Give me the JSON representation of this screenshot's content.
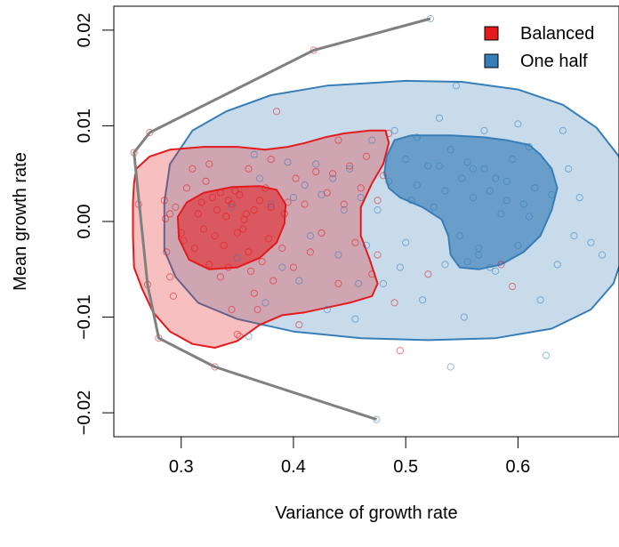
{
  "chart_data": {
    "type": "scatter",
    "title": "",
    "xlabel": "Variance of growth rate",
    "ylabel": "Mean growth rate",
    "xlim": [
      0.24,
      0.69
    ],
    "ylim": [
      -0.0225,
      0.0225
    ],
    "x_ticks": [
      {
        "value": 0.3,
        "label": "0.3"
      },
      {
        "value": 0.4,
        "label": "0.4"
      },
      {
        "value": 0.5,
        "label": "0.5"
      },
      {
        "value": 0.6,
        "label": "0.6"
      }
    ],
    "y_ticks": [
      {
        "value": -0.02,
        "label": "−0.02"
      },
      {
        "value": -0.01,
        "label": "−0.01"
      },
      {
        "value": 0.0,
        "label": "0.00"
      },
      {
        "value": 0.01,
        "label": "0.01"
      },
      {
        "value": 0.02,
        "label": "0.02"
      }
    ],
    "grid": false,
    "legend_position": "top-right",
    "series": [
      {
        "name": "Balanced",
        "color": "#e41a1c",
        "points": [
          [
            0.258,
            0.0072
          ],
          [
            0.262,
            0.0018
          ],
          [
            0.272,
            0.0093
          ],
          [
            0.27,
            -0.0066
          ],
          [
            0.28,
            -0.0122
          ],
          [
            0.285,
            0.0022
          ],
          [
            0.286,
            0.0003
          ],
          [
            0.287,
            -0.0032
          ],
          [
            0.29,
            0.0008
          ],
          [
            0.29,
            -0.0058
          ],
          [
            0.293,
            -0.0078
          ],
          [
            0.295,
            0.0015
          ],
          [
            0.3,
            -0.0012
          ],
          [
            0.302,
            -0.002
          ],
          [
            0.305,
            0.0035
          ],
          [
            0.31,
            0.0055
          ],
          [
            0.312,
            -0.0028
          ],
          [
            0.315,
            0.0008
          ],
          [
            0.318,
            0.002
          ],
          [
            0.32,
            -0.0008
          ],
          [
            0.322,
            0.0042
          ],
          [
            0.325,
            -0.0045
          ],
          [
            0.325,
            0.006
          ],
          [
            0.328,
            0.0025
          ],
          [
            0.33,
            -0.0015
          ],
          [
            0.332,
            0.0012
          ],
          [
            0.335,
            0.003
          ],
          [
            0.335,
            -0.0058
          ],
          [
            0.338,
            -0.0025
          ],
          [
            0.34,
            0.0005
          ],
          [
            0.342,
            -0.0048
          ],
          [
            0.345,
            0.0018
          ],
          [
            0.345,
            -0.0092
          ],
          [
            0.348,
            0.0032
          ],
          [
            0.35,
            -0.0012
          ],
          [
            0.35,
            -0.0118
          ],
          [
            0.352,
            0.0028
          ],
          [
            0.352,
            -0.012
          ],
          [
            0.355,
            -0.0008
          ],
          [
            0.358,
            0.0008
          ],
          [
            0.36,
            -0.0032
          ],
          [
            0.36,
            0.0055
          ],
          [
            0.362,
            -0.0052
          ],
          [
            0.365,
            -0.0075
          ],
          [
            0.365,
            0.0012
          ],
          [
            0.368,
            -0.0092
          ],
          [
            0.37,
            0.0022
          ],
          [
            0.372,
            -0.0042
          ],
          [
            0.375,
            0.0035
          ],
          [
            0.378,
            -0.0018
          ],
          [
            0.38,
            0.0065
          ],
          [
            0.382,
            -0.0062
          ],
          [
            0.385,
            0.0115
          ],
          [
            0.39,
            -0.0028
          ],
          [
            0.392,
            0.0008
          ],
          [
            0.395,
            0.002
          ],
          [
            0.4,
            -0.0048
          ],
          [
            0.402,
            0.0045
          ],
          [
            0.405,
            -0.0108
          ],
          [
            0.41,
            0.0018
          ],
          [
            0.415,
            -0.0032
          ],
          [
            0.42,
            0.0052
          ],
          [
            0.418,
            0.0179
          ],
          [
            0.425,
            -0.0012
          ],
          [
            0.43,
            0.003
          ],
          [
            0.435,
            0.005
          ],
          [
            0.44,
            -0.0065
          ],
          [
            0.445,
            0.0018
          ],
          [
            0.45,
            0.0058
          ],
          [
            0.455,
            -0.0022
          ],
          [
            0.46,
            0.0035
          ],
          [
            0.465,
            0.0068
          ],
          [
            0.47,
            -0.0055
          ],
          [
            0.475,
            0.0022
          ],
          [
            0.48,
            0.0048
          ],
          [
            0.485,
            0.0092
          ],
          [
            0.49,
            -0.0085
          ],
          [
            0.495,
            -0.0135
          ],
          [
            0.475,
            -0.0035
          ],
          [
            0.44,
            0.0085
          ],
          [
            0.33,
            -0.0152
          ],
          [
            0.52,
            -0.0055
          ],
          [
            0.585,
            -0.0045
          ],
          [
            0.595,
            -0.0068
          ],
          [
            0.38,
            0.0015
          ],
          [
            0.342,
            0.0022
          ],
          [
            0.356,
            0.0002
          ]
        ]
      },
      {
        "name": "One half",
        "color": "#377eb8",
        "points": [
          [
            0.522,
            0.0212
          ],
          [
            0.474,
            -0.0207
          ],
          [
            0.36,
            -0.012
          ],
          [
            0.345,
            0.0015
          ],
          [
            0.35,
            -0.0038
          ],
          [
            0.365,
            0.007
          ],
          [
            0.37,
            0.0045
          ],
          [
            0.375,
            -0.0085
          ],
          [
            0.38,
            0.0018
          ],
          [
            0.39,
            -0.0048
          ],
          [
            0.395,
            0.0062
          ],
          [
            0.4,
            0.0025
          ],
          [
            0.405,
            -0.0062
          ],
          [
            0.41,
            0.0038
          ],
          [
            0.415,
            -0.0015
          ],
          [
            0.42,
            0.006
          ],
          [
            0.425,
            0.0028
          ],
          [
            0.43,
            -0.0092
          ],
          [
            0.435,
            0.0045
          ],
          [
            0.44,
            -0.0035
          ],
          [
            0.445,
            0.0012
          ],
          [
            0.45,
            0.0055
          ],
          [
            0.455,
            -0.0102
          ],
          [
            0.46,
            0.0025
          ],
          [
            0.465,
            -0.0025
          ],
          [
            0.47,
            0.0085
          ],
          [
            0.475,
            0.0012
          ],
          [
            0.48,
            -0.0065
          ],
          [
            0.485,
            0.0042
          ],
          [
            0.49,
            0.0095
          ],
          [
            0.495,
            -0.0048
          ],
          [
            0.5,
            0.0065
          ],
          [
            0.505,
            0.0022
          ],
          [
            0.51,
            0.0088
          ],
          [
            0.515,
            -0.0082
          ],
          [
            0.52,
            0.0058
          ],
          [
            0.525,
            0.0015
          ],
          [
            0.53,
            0.0108
          ],
          [
            0.535,
            -0.0045
          ],
          [
            0.54,
            0.0075
          ],
          [
            0.545,
            0.0142
          ],
          [
            0.548,
            -0.0015
          ],
          [
            0.55,
            0.0045
          ],
          [
            0.552,
            -0.01
          ],
          [
            0.555,
            0.0062
          ],
          [
            0.56,
            0.0025
          ],
          [
            0.565,
            -0.0035
          ],
          [
            0.57,
            0.0055
          ],
          [
            0.575,
            0.0032
          ],
          [
            0.58,
            -0.0052
          ],
          [
            0.585,
            0.0008
          ],
          [
            0.59,
            0.0042
          ],
          [
            0.595,
            0.0065
          ],
          [
            0.6,
            -0.0025
          ],
          [
            0.605,
            0.0018
          ],
          [
            0.61,
            0.0078
          ],
          [
            0.615,
            0.0035
          ],
          [
            0.62,
            -0.0082
          ],
          [
            0.625,
            -0.014
          ],
          [
            0.63,
            0.0028
          ],
          [
            0.635,
            -0.0045
          ],
          [
            0.64,
            0.0095
          ],
          [
            0.645,
            0.0055
          ],
          [
            0.65,
            -0.0015
          ],
          [
            0.655,
            0.0025
          ],
          [
            0.665,
            -0.0022
          ],
          [
            0.675,
            -0.0035
          ],
          [
            0.6,
            0.0102
          ],
          [
            0.57,
            0.0095
          ],
          [
            0.56,
            0.0055
          ],
          [
            0.54,
            -0.0152
          ],
          [
            0.5,
            -0.0022
          ],
          [
            0.458,
            -0.0065
          ],
          [
            0.535,
            0.0032
          ],
          [
            0.58,
            0.0045
          ],
          [
            0.59,
            0.0022
          ],
          [
            0.61,
            0.0005
          ],
          [
            0.555,
            -0.0042
          ],
          [
            0.565,
            -0.0028
          ],
          [
            0.575,
            -0.0048
          ],
          [
            0.53,
            0.0058
          ],
          [
            0.51,
            0.0038
          ]
        ]
      }
    ],
    "hull": {
      "color": "#808080",
      "points": [
        [
          0.522,
          0.0212
        ],
        [
          0.418,
          0.0179
        ],
        [
          0.272,
          0.0093
        ],
        [
          0.258,
          0.0072
        ],
        [
          0.27,
          -0.0066
        ],
        [
          0.28,
          -0.0122
        ],
        [
          0.33,
          -0.0152
        ],
        [
          0.474,
          -0.0207
        ]
      ]
    },
    "regions": [
      {
        "series": "One half",
        "level": "outer",
        "fill": "#377eb8",
        "opacity": 0.28,
        "points": [
          [
            0.285,
            0.002
          ],
          [
            0.29,
            0.006
          ],
          [
            0.31,
            0.0095
          ],
          [
            0.34,
            0.0115
          ],
          [
            0.38,
            0.0132
          ],
          [
            0.43,
            0.0142
          ],
          [
            0.5,
            0.0147
          ],
          [
            0.55,
            0.0146
          ],
          [
            0.6,
            0.0138
          ],
          [
            0.64,
            0.0122
          ],
          [
            0.67,
            0.0098
          ],
          [
            0.69,
            0.0068
          ],
          [
            0.695,
            0.003
          ],
          [
            0.695,
            -0.003
          ],
          [
            0.685,
            -0.0065
          ],
          [
            0.665,
            -0.0092
          ],
          [
            0.63,
            -0.0112
          ],
          [
            0.58,
            -0.0122
          ],
          [
            0.52,
            -0.0124
          ],
          [
            0.46,
            -0.0122
          ],
          [
            0.4,
            -0.0115
          ],
          [
            0.35,
            -0.0102
          ],
          [
            0.315,
            -0.0085
          ],
          [
            0.295,
            -0.0058
          ],
          [
            0.285,
            -0.003
          ]
        ]
      },
      {
        "series": "Balanced",
        "level": "outer",
        "fill": "#e41a1c",
        "opacity": 0.28,
        "points": [
          [
            0.258,
            0.004
          ],
          [
            0.26,
            0.0055
          ],
          [
            0.272,
            0.0068
          ],
          [
            0.29,
            0.0075
          ],
          [
            0.32,
            0.0078
          ],
          [
            0.35,
            0.0078
          ],
          [
            0.375,
            0.0075
          ],
          [
            0.395,
            0.0078
          ],
          [
            0.41,
            0.0082
          ],
          [
            0.428,
            0.0088
          ],
          [
            0.445,
            0.0092
          ],
          [
            0.468,
            0.0095
          ],
          [
            0.482,
            0.0095
          ],
          [
            0.485,
            0.0082
          ],
          [
            0.48,
            0.006
          ],
          [
            0.47,
            0.004
          ],
          [
            0.46,
            0.0015
          ],
          [
            0.46,
            -0.0015
          ],
          [
            0.468,
            -0.004
          ],
          [
            0.475,
            -0.0065
          ],
          [
            0.47,
            -0.0078
          ],
          [
            0.45,
            -0.0085
          ],
          [
            0.43,
            -0.009
          ],
          [
            0.41,
            -0.0095
          ],
          [
            0.39,
            -0.0098
          ],
          [
            0.37,
            -0.0108
          ],
          [
            0.35,
            -0.0125
          ],
          [
            0.33,
            -0.0132
          ],
          [
            0.31,
            -0.0128
          ],
          [
            0.29,
            -0.0115
          ],
          [
            0.275,
            -0.0095
          ],
          [
            0.265,
            -0.007
          ],
          [
            0.258,
            -0.0048
          ],
          [
            0.257,
            -0.0015
          ],
          [
            0.257,
            0.002
          ]
        ]
      },
      {
        "series": "One half",
        "level": "inner",
        "fill": "#377eb8",
        "opacity": 0.65,
        "points": [
          [
            0.483,
            0.0068
          ],
          [
            0.49,
            0.0085
          ],
          [
            0.505,
            0.009
          ],
          [
            0.54,
            0.009
          ],
          [
            0.57,
            0.0088
          ],
          [
            0.59,
            0.0085
          ],
          [
            0.61,
            0.008
          ],
          [
            0.62,
            0.007
          ],
          [
            0.63,
            0.0055
          ],
          [
            0.635,
            0.0035
          ],
          [
            0.63,
            0.0012
          ],
          [
            0.62,
            -0.0015
          ],
          [
            0.605,
            -0.0032
          ],
          [
            0.585,
            -0.0045
          ],
          [
            0.565,
            -0.005
          ],
          [
            0.548,
            -0.0048
          ],
          [
            0.54,
            -0.0035
          ],
          [
            0.538,
            -0.0015
          ],
          [
            0.532,
            0.0002
          ],
          [
            0.515,
            0.0015
          ],
          [
            0.495,
            0.0025
          ],
          [
            0.485,
            0.0035
          ],
          [
            0.481,
            0.005
          ]
        ]
      },
      {
        "series": "Balanced",
        "level": "inner",
        "fill": "#e41a1c",
        "opacity": 0.55,
        "points": [
          [
            0.297,
            0.0005
          ],
          [
            0.305,
            0.002
          ],
          [
            0.32,
            0.003
          ],
          [
            0.345,
            0.0036
          ],
          [
            0.37,
            0.0037
          ],
          [
            0.385,
            0.0033
          ],
          [
            0.393,
            0.0018
          ],
          [
            0.392,
            -0.0002
          ],
          [
            0.385,
            -0.0022
          ],
          [
            0.37,
            -0.0038
          ],
          [
            0.35,
            -0.0048
          ],
          [
            0.325,
            -0.005
          ],
          [
            0.307,
            -0.004
          ],
          [
            0.298,
            -0.0018
          ]
        ]
      }
    ]
  }
}
